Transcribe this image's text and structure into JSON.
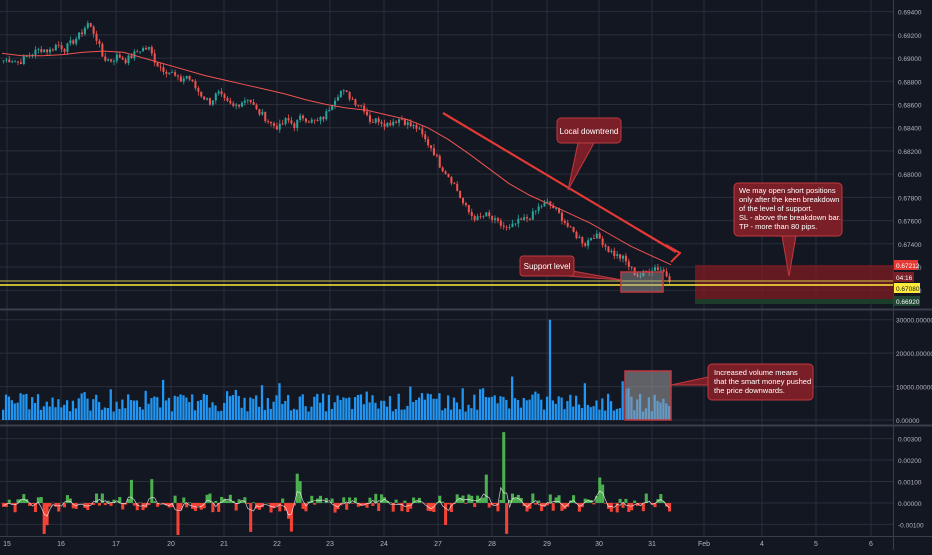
{
  "chart_data": [
    {
      "type": "candlestick",
      "panel": "price",
      "xaxis_ticks": [
        "15",
        "16",
        "17",
        "20",
        "21",
        "22",
        "23",
        "24",
        "27",
        "28",
        "29",
        "30",
        "31",
        "Feb",
        "4",
        "5",
        "6"
      ],
      "yaxis_ticks": [
        "0.69400",
        "0.69200",
        "0.69000",
        "0.68800",
        "0.68600",
        "0.68400",
        "0.68200",
        "0.68000",
        "0.67800",
        "0.67600",
        "0.67400",
        "0.67200",
        "0.67000",
        "0.66800"
      ],
      "ylim": [
        0.6689,
        0.6944
      ],
      "series_close_path": [
        0.6898,
        0.6899,
        0.6896,
        0.6901,
        0.6905,
        0.6908,
        0.6906,
        0.6912,
        0.6908,
        0.6914,
        0.692,
        0.693,
        0.692,
        0.69,
        0.6898,
        0.6902,
        0.6898,
        0.6903,
        0.6908,
        0.6908,
        0.6895,
        0.689,
        0.6887,
        0.688,
        0.6885,
        0.6875,
        0.6867,
        0.6862,
        0.687,
        0.6862,
        0.6858,
        0.6862,
        0.6866,
        0.6855,
        0.685,
        0.6843,
        0.684,
        0.6847,
        0.6842,
        0.685,
        0.6846,
        0.6845,
        0.685,
        0.6863,
        0.6872,
        0.6868,
        0.6862,
        0.6858,
        0.6845,
        0.6847,
        0.6843,
        0.6846,
        0.6848,
        0.6842,
        0.684,
        0.683,
        0.6822,
        0.6808,
        0.68,
        0.679,
        0.6775,
        0.6765,
        0.6761,
        0.6765,
        0.676,
        0.6756,
        0.6752,
        0.6758,
        0.6761,
        0.6764,
        0.6772,
        0.6775,
        0.677,
        0.6762,
        0.6752,
        0.6746,
        0.674,
        0.6748,
        0.6744,
        0.6735,
        0.673,
        0.6727,
        0.6718,
        0.6712,
        0.6716,
        0.672,
        0.6718,
        0.671
      ],
      "series_ma_path": [
        0.6904,
        0.6902,
        0.6902,
        0.6903,
        0.6905,
        0.6906,
        0.6905,
        0.69,
        0.6895,
        0.689,
        0.6885,
        0.6881,
        0.6877,
        0.6873,
        0.6869,
        0.6864,
        0.686,
        0.6857,
        0.6855,
        0.6851,
        0.6847,
        0.684,
        0.683,
        0.6818,
        0.6805,
        0.6792,
        0.6782,
        0.6774,
        0.6766,
        0.6758,
        0.6748,
        0.6738,
        0.673,
        0.6722
      ],
      "price_labels": {
        "current_high": "0.67212",
        "countdown": "04:16",
        "support": "0.67080",
        "target": "0.66920"
      },
      "annotations": {
        "downtrend": "Local downtrend",
        "support": "Support level",
        "strategy": [
          "We may open short positions",
          "only after the keen breakdown",
          "of the level of support.",
          "SL - above the breakdown bar.",
          "TP - more than 80 pips."
        ]
      }
    },
    {
      "type": "bar",
      "panel": "volume",
      "yaxis_ticks": [
        "30000.00000",
        "20000.00000",
        "10000.00000",
        "0.00000"
      ],
      "ylim": [
        0,
        32000
      ],
      "annotation": [
        "Increased volume means",
        "that the smart money pushed",
        "the price downwards."
      ]
    },
    {
      "type": "area",
      "panel": "oscillator",
      "yaxis_ticks": [
        "0.00300",
        "0.00200",
        "0.00100",
        "0.00000",
        "-0.00100"
      ],
      "ylim": [
        -0.0014,
        0.0034
      ]
    }
  ],
  "colors": {
    "background": "#131722",
    "grid": "#2a2e39",
    "candle_up": "#26a69a",
    "candle_down": "#ef5350",
    "volume": "#2196f3",
    "support_line": "#ffeb3b",
    "trend_line": "#e53935",
    "ma_line": "#ef5350",
    "annotation_bg": "#7a1f27",
    "annotation_border": "#c0393f",
    "osc_green": "#4caf50",
    "osc_red": "#f44336",
    "highlight_box": "#9e9e9e"
  }
}
